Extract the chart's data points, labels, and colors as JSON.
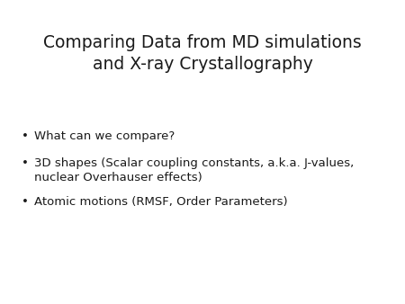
{
  "title_line1": "Comparing Data from MD simulations",
  "title_line2": "and X-ray Crystallography",
  "bullet_points": [
    "What can we compare?",
    "3D shapes (Scalar coupling constants, a.k.a. J-values,\nnuclear Overhauser effects)",
    "Atomic motions (RMSF, Order Parameters)"
  ],
  "background_color": "#ffffff",
  "text_color": "#1a1a1a",
  "title_fontsize": 13.5,
  "bullet_fontsize": 9.5,
  "title_font": "DejaVu Sans",
  "bullet_font": "DejaVu Sans"
}
